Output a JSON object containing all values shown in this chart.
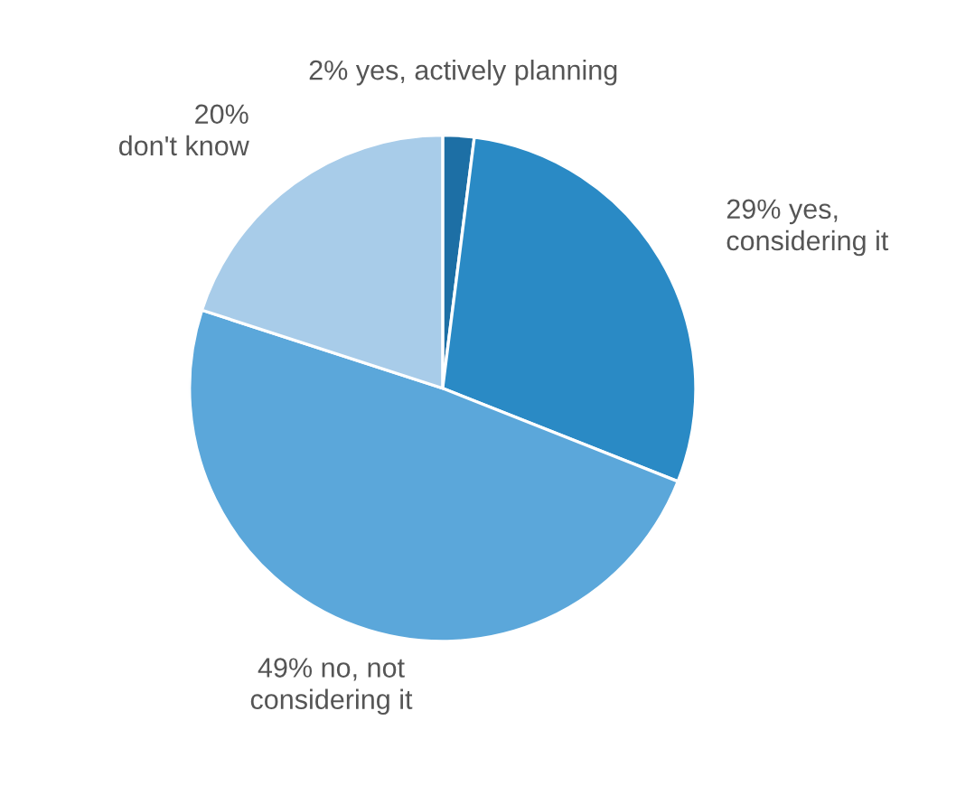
{
  "chart_data": {
    "type": "pie",
    "categories": [
      "2% yes, actively planning",
      "29% yes,\nconsidering it",
      "49% no, not\nconsidering it",
      "20%\ndon't know"
    ],
    "values": [
      2,
      29,
      49,
      20
    ],
    "colors": [
      "#1d6fa5",
      "#2a8ac5",
      "#5ba7da",
      "#a8cce9"
    ]
  }
}
